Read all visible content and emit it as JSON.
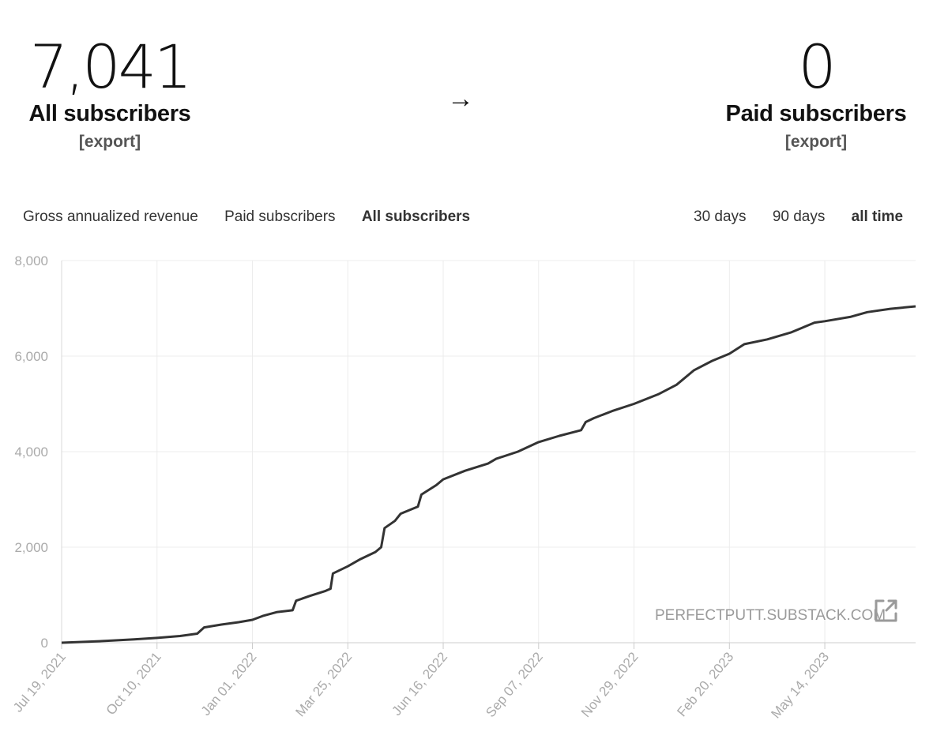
{
  "stats": {
    "left": {
      "value": "7,041",
      "label": "All subscribers",
      "export": "[export]"
    },
    "arrow": "→",
    "right": {
      "value": "0",
      "label": "Paid subscribers",
      "export": "[export]"
    }
  },
  "metric_tabs": [
    "Gross annualized revenue",
    "Paid subscribers",
    "All subscribers"
  ],
  "active_metric": "All subscribers",
  "range_tabs": [
    "30 days",
    "90 days",
    "all time"
  ],
  "active_range": "all time",
  "watermark": "PERFECTPUTT.SUBSTACK.COM",
  "chart_data": {
    "type": "line",
    "title": "",
    "xlabel": "",
    "ylabel": "",
    "ylim": [
      0,
      8000
    ],
    "yticks": [
      "0",
      "2,000",
      "4,000",
      "6,000",
      "8,000"
    ],
    "xticks": [
      "Jul 19, 2021",
      "Oct 10, 2021",
      "Jan 01, 2022",
      "Mar 25, 2022",
      "Jun 16, 2022",
      "Sep 07, 2022",
      "Nov 29, 2022",
      "Feb 20, 2023",
      "May 14, 2023"
    ],
    "grid": true,
    "line_color": "#333333",
    "series": [
      {
        "values": [
          [
            "2021-07-19",
            0
          ],
          [
            "2021-08-10",
            20
          ],
          [
            "2021-09-01",
            45
          ],
          [
            "2021-09-20",
            70
          ],
          [
            "2021-10-10",
            100
          ],
          [
            "2021-10-30",
            140
          ],
          [
            "2021-11-14",
            190
          ],
          [
            "2021-11-20",
            320
          ],
          [
            "2021-12-05",
            380
          ],
          [
            "2021-12-20",
            430
          ],
          [
            "2022-01-01",
            480
          ],
          [
            "2022-01-10",
            560
          ],
          [
            "2022-01-22",
            640
          ],
          [
            "2022-02-05",
            680
          ],
          [
            "2022-02-08",
            880
          ],
          [
            "2022-02-20",
            980
          ],
          [
            "2022-03-05",
            1080
          ],
          [
            "2022-03-10",
            1130
          ],
          [
            "2022-03-12",
            1450
          ],
          [
            "2022-03-25",
            1600
          ],
          [
            "2022-04-05",
            1750
          ],
          [
            "2022-04-18",
            1900
          ],
          [
            "2022-04-23",
            2000
          ],
          [
            "2022-04-26",
            2400
          ],
          [
            "2022-05-05",
            2550
          ],
          [
            "2022-05-10",
            2700
          ],
          [
            "2022-05-25",
            2850
          ],
          [
            "2022-05-28",
            3100
          ],
          [
            "2022-06-10",
            3300
          ],
          [
            "2022-06-16",
            3420
          ],
          [
            "2022-07-05",
            3600
          ],
          [
            "2022-07-25",
            3750
          ],
          [
            "2022-08-01",
            3850
          ],
          [
            "2022-08-20",
            4000
          ],
          [
            "2022-09-07",
            4200
          ],
          [
            "2022-09-25",
            4330
          ],
          [
            "2022-10-14",
            4450
          ],
          [
            "2022-10-18",
            4620
          ],
          [
            "2022-10-25",
            4700
          ],
          [
            "2022-11-10",
            4850
          ],
          [
            "2022-11-29",
            5000
          ],
          [
            "2022-12-20",
            5200
          ],
          [
            "2023-01-05",
            5400
          ],
          [
            "2023-01-20",
            5700
          ],
          [
            "2023-02-05",
            5900
          ],
          [
            "2023-02-20",
            6050
          ],
          [
            "2023-03-05",
            6250
          ],
          [
            "2023-03-25",
            6350
          ],
          [
            "2023-04-15",
            6500
          ],
          [
            "2023-05-05",
            6700
          ],
          [
            "2023-05-14",
            6730
          ],
          [
            "2023-06-05",
            6820
          ],
          [
            "2023-06-20",
            6920
          ],
          [
            "2023-07-10",
            6990
          ],
          [
            "2023-08-01",
            7041
          ]
        ]
      }
    ]
  }
}
